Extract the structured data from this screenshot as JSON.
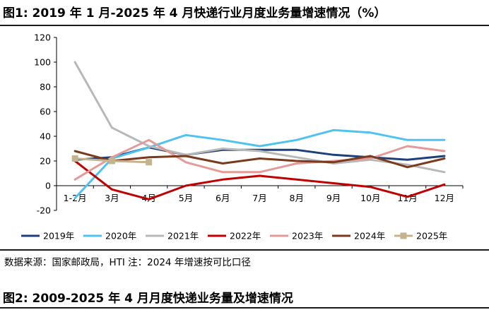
{
  "figure1": {
    "title": "图1:  2019 年 1 月-2025 年 4 月快递行业月度业务量增速情况（%）",
    "source": "数据来源：国家邮政局，HTI   注：2024 年增速按可比口径"
  },
  "figure2": {
    "title": "图2:  2009-2025 年 4 月月度快递业务量及增速情况"
  },
  "chart_data": {
    "type": "line",
    "title": "",
    "xlabel": "",
    "ylabel": "",
    "categories": [
      "1-2月",
      "3月",
      "4月",
      "5月",
      "6月",
      "7月",
      "8月",
      "9月",
      "10月",
      "11月",
      "12月"
    ],
    "ylim": [
      -20,
      120
    ],
    "yticks": [
      -20,
      0,
      20,
      40,
      60,
      80,
      100,
      120
    ],
    "grid": false,
    "legend_position": "bottom",
    "series": [
      {
        "name": "2019年",
        "color": "#1f3f7a",
        "marker": "none",
        "values": [
          21,
          23,
          31,
          25,
          29,
          29,
          29,
          25,
          23,
          21,
          24
        ]
      },
      {
        "name": "2020年",
        "color": "#4fc3f0",
        "marker": "none",
        "values": [
          -10,
          22,
          31,
          41,
          37,
          32,
          37,
          45,
          43,
          37,
          37
        ]
      },
      {
        "name": "2021年",
        "color": "#b8b8b8",
        "marker": "none",
        "values": [
          100,
          47,
          32,
          25,
          30,
          28,
          23,
          18,
          21,
          17,
          11
        ]
      },
      {
        "name": "2022年",
        "color": "#c00000",
        "marker": "none",
        "values": [
          20,
          -3,
          -11,
          0,
          5,
          8,
          5,
          2,
          -1,
          -9,
          1
        ]
      },
      {
        "name": "2023年",
        "color": "#e39b99",
        "marker": "none",
        "values": [
          5,
          23,
          37,
          19,
          11,
          11,
          18,
          20,
          22,
          32,
          28
        ]
      },
      {
        "name": "2024年",
        "color": "#7a3a1c",
        "marker": "none",
        "values": [
          28,
          20,
          23,
          24,
          18,
          22,
          20,
          19,
          24,
          15,
          22
        ]
      },
      {
        "name": "2025年",
        "color": "#c4b48e",
        "marker": "square",
        "values": [
          22,
          20,
          19,
          null,
          null,
          null,
          null,
          null,
          null,
          null,
          null
        ]
      }
    ]
  }
}
